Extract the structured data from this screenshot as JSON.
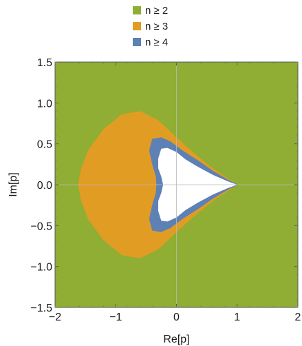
{
  "chart_data": {
    "type": "region",
    "xlabel": "Re[p]",
    "ylabel": "Im[p]",
    "xlim": [
      -2,
      2
    ],
    "ylim": [
      -1.5,
      1.5
    ],
    "x_ticks": [
      -2,
      -1,
      0,
      1,
      2
    ],
    "y_ticks": [
      -1.5,
      -1.0,
      -0.5,
      0.0,
      0.5,
      1.0,
      1.5
    ],
    "x_tick_labels": [
      "−2",
      "−1",
      "0",
      "1",
      "2"
    ],
    "y_tick_labels": [
      "−1.5",
      "−1.0",
      "−0.5",
      "0.0",
      "0.5",
      "1.0",
      "1.5"
    ],
    "grid": "zero-lines",
    "legend_position": "top",
    "series": [
      {
        "name": "n ≥ 2",
        "color": "#8fae33",
        "boundary": [
          [
            -2,
            -1.5
          ],
          [
            2,
            -1.5
          ],
          [
            2,
            1.5
          ],
          [
            -2,
            1.5
          ]
        ]
      },
      {
        "name": "n ≥ 3",
        "color": "#e19c24",
        "boundary_upper": [
          [
            1.02,
            0.0
          ],
          [
            0.9,
            0.05
          ],
          [
            0.6,
            0.2
          ],
          [
            0.3,
            0.38
          ],
          [
            0.0,
            0.58
          ],
          [
            -0.3,
            0.79
          ],
          [
            -0.6,
            0.9
          ],
          [
            -0.9,
            0.86
          ],
          [
            -1.2,
            0.68
          ],
          [
            -1.45,
            0.43
          ],
          [
            -1.57,
            0.2
          ],
          [
            -1.62,
            0.0
          ]
        ]
      },
      {
        "name": "n ≥ 4",
        "color": "#5e81b5",
        "boundary_upper": [
          [
            1.02,
            0.0
          ],
          [
            0.85,
            0.06
          ],
          [
            0.6,
            0.17
          ],
          [
            0.35,
            0.3
          ],
          [
            0.1,
            0.42
          ],
          [
            -0.1,
            0.53
          ],
          [
            -0.25,
            0.58
          ],
          [
            -0.4,
            0.56
          ],
          [
            -0.45,
            0.42
          ],
          [
            -0.4,
            0.25
          ],
          [
            -0.34,
            0.1
          ],
          [
            -0.33,
            0.0
          ]
        ]
      },
      {
        "name": "",
        "color": "#ffffff",
        "boundary_upper": [
          [
            1.0,
            0.0
          ],
          [
            0.85,
            0.04
          ],
          [
            0.6,
            0.12
          ],
          [
            0.35,
            0.22
          ],
          [
            0.15,
            0.31
          ],
          [
            0.0,
            0.4
          ],
          [
            -0.15,
            0.45
          ],
          [
            -0.25,
            0.44
          ],
          [
            -0.3,
            0.32
          ],
          [
            -0.3,
            0.2
          ],
          [
            -0.25,
            0.1
          ],
          [
            -0.22,
            0.0
          ]
        ]
      }
    ]
  }
}
